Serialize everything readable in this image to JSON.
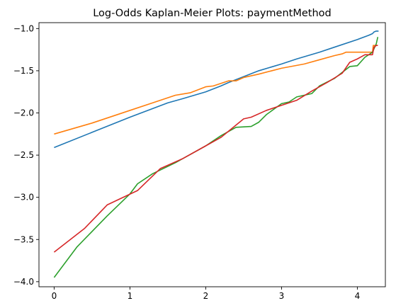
{
  "chart_data": {
    "type": "line",
    "title": "Log-Odds Kaplan-Meier Plots: paymentMethod",
    "xlabel": "",
    "ylabel": "",
    "xlim": [
      -0.2,
      4.37
    ],
    "ylim": [
      -4.06,
      -0.93
    ],
    "x_ticks": [
      0,
      1,
      2,
      3,
      4
    ],
    "y_ticks": [
      -4.0,
      -3.5,
      -3.0,
      -2.5,
      -2.0,
      -1.5,
      -1.0
    ],
    "x_tick_labels": [
      "0",
      "1",
      "2",
      "3",
      "4"
    ],
    "y_tick_labels": [
      "−4.0",
      "−3.5",
      "−3.0",
      "−2.5",
      "−2.0",
      "−1.5",
      "−1.0"
    ],
    "grid": false,
    "legend": "none",
    "series": [
      {
        "color": "#1f77b4",
        "x": [
          0,
          0.5,
          1.0,
          1.5,
          1.7,
          2.0,
          2.2,
          2.3,
          2.5,
          2.7,
          3.0,
          3.2,
          3.5,
          3.7,
          4.0,
          4.15,
          4.2,
          4.22,
          4.25,
          4.28
        ],
        "y": [
          -2.41,
          -2.23,
          -2.05,
          -1.88,
          -1.83,
          -1.75,
          -1.68,
          -1.64,
          -1.57,
          -1.5,
          -1.42,
          -1.36,
          -1.28,
          -1.22,
          -1.13,
          -1.08,
          -1.06,
          -1.04,
          -1.03,
          -1.03
        ]
      },
      {
        "color": "#ff7f0e",
        "x": [
          0,
          0.5,
          1.0,
          1.3,
          1.6,
          1.8,
          2.0,
          2.1,
          2.3,
          2.4,
          2.5,
          2.7,
          3.0,
          3.3,
          3.5,
          3.7,
          3.8,
          3.85,
          4.0,
          4.1,
          4.2,
          4.21,
          4.27
        ],
        "y": [
          -2.25,
          -2.12,
          -1.97,
          -1.88,
          -1.79,
          -1.76,
          -1.69,
          -1.68,
          -1.62,
          -1.62,
          -1.58,
          -1.54,
          -1.47,
          -1.42,
          -1.37,
          -1.32,
          -1.3,
          -1.28,
          -1.28,
          -1.28,
          -1.28,
          -1.2,
          -1.2
        ]
      },
      {
        "color": "#2ca02c",
        "x": [
          0,
          0.3,
          0.7,
          1.0,
          1.1,
          1.3,
          1.6,
          1.8,
          2.0,
          2.2,
          2.4,
          2.6,
          2.7,
          2.8,
          3.0,
          3.1,
          3.2,
          3.4,
          3.5,
          3.7,
          3.8,
          3.9,
          4.0,
          4.1,
          4.15,
          4.2,
          4.25,
          4.27
        ],
        "y": [
          -3.95,
          -3.59,
          -3.22,
          -2.96,
          -2.84,
          -2.72,
          -2.59,
          -2.49,
          -2.39,
          -2.27,
          -2.17,
          -2.16,
          -2.11,
          -2.02,
          -1.89,
          -1.87,
          -1.81,
          -1.77,
          -1.68,
          -1.59,
          -1.52,
          -1.45,
          -1.44,
          -1.34,
          -1.31,
          -1.28,
          -1.18,
          -1.1
        ]
      },
      {
        "color": "#d62728",
        "x": [
          0,
          0.4,
          0.7,
          1.1,
          1.4,
          1.7,
          2.0,
          2.2,
          2.5,
          2.6,
          2.8,
          3.0,
          3.2,
          3.4,
          3.6,
          3.8,
          3.9,
          4.0,
          4.1,
          4.2,
          4.22,
          4.25,
          4.27
        ],
        "y": [
          -3.65,
          -3.37,
          -3.09,
          -2.92,
          -2.66,
          -2.54,
          -2.39,
          -2.29,
          -2.07,
          -2.05,
          -1.97,
          -1.91,
          -1.85,
          -1.74,
          -1.64,
          -1.53,
          -1.4,
          -1.36,
          -1.31,
          -1.31,
          -1.22,
          -1.2,
          -1.2
        ]
      }
    ]
  }
}
